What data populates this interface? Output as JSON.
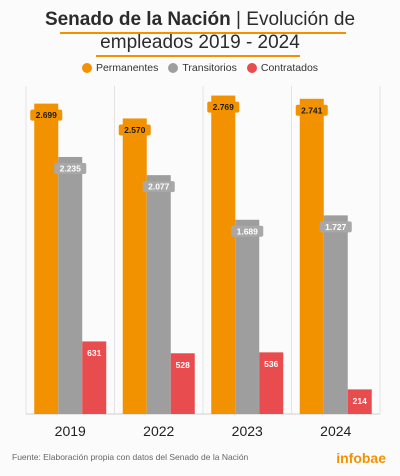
{
  "header": {
    "title_bold": "Senado de la Nación",
    "title_sep": " | ",
    "title_rest_1": "Evolución de",
    "title_line_2": "empleados 2019 - 2024"
  },
  "footer": {
    "source": "Fuente: Elaboración propia con datos del Senado de la Nación",
    "brand": "infobae"
  },
  "chart_data": {
    "type": "bar",
    "categories": [
      "2019",
      "2022",
      "2023",
      "2024"
    ],
    "series": [
      {
        "name": "Permanentes",
        "color": "#f39200",
        "values": [
          2699,
          2570,
          2769,
          2741
        ],
        "labels": [
          "2.699",
          "2.570",
          "2.769",
          "2.741"
        ]
      },
      {
        "name": "Transitorios",
        "color": "#9e9e9e",
        "values": [
          2235,
          2077,
          1689,
          1727
        ],
        "labels": [
          "2.235",
          "2.077",
          "1.689",
          "1.727"
        ]
      },
      {
        "name": "Contratados",
        "color": "#e84c4f",
        "values": [
          631,
          528,
          536,
          214
        ],
        "labels": [
          "631",
          "528",
          "536",
          "214"
        ]
      }
    ],
    "ylim": [
      0,
      2800
    ],
    "grid": true,
    "legend": "top-center"
  }
}
